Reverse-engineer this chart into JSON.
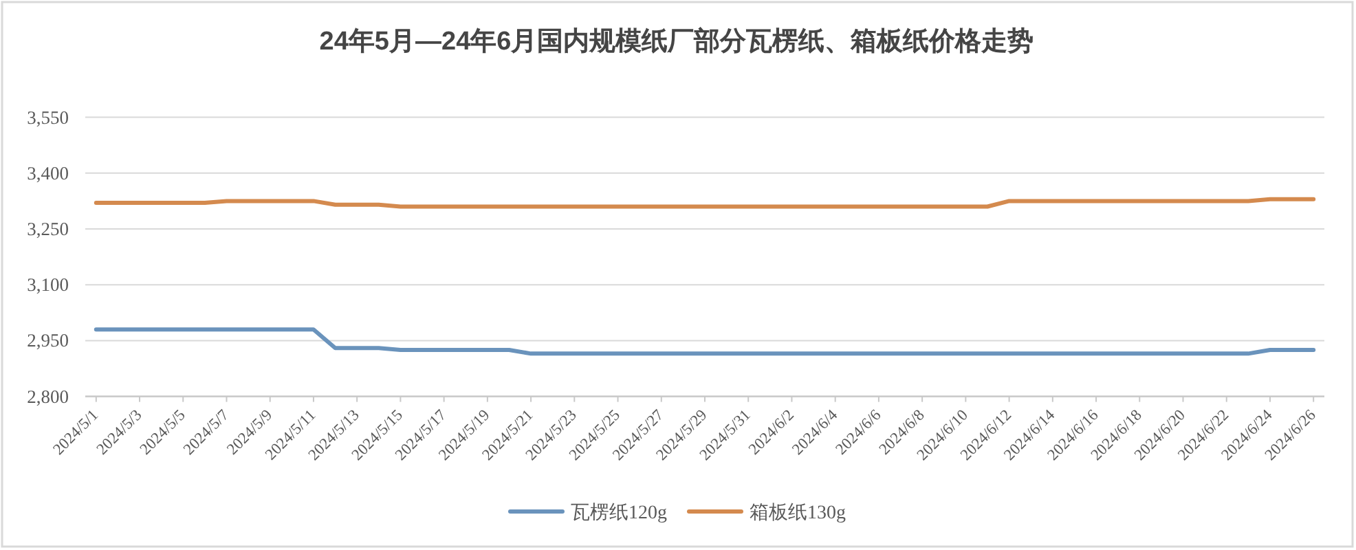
{
  "chart_data": {
    "type": "line",
    "title": "24年5月—24年6月国内规模纸厂部分瓦楞纸、箱板纸价格走势",
    "x": [
      "2024-05-01",
      "2024-05-02",
      "2024-05-03",
      "2024-05-04",
      "2024-05-05",
      "2024-05-06",
      "2024-05-07",
      "2024-05-08",
      "2024-05-09",
      "2024-05-10",
      "2024-05-11",
      "2024-05-12",
      "2024-05-13",
      "2024-05-14",
      "2024-05-15",
      "2024-05-16",
      "2024-05-17",
      "2024-05-18",
      "2024-05-19",
      "2024-05-20",
      "2024-05-21",
      "2024-05-22",
      "2024-05-23",
      "2024-05-24",
      "2024-05-25",
      "2024-05-26",
      "2024-05-27",
      "2024-05-28",
      "2024-05-29",
      "2024-05-30",
      "2024-05-31",
      "2024-06-01",
      "2024-06-02",
      "2024-06-03",
      "2024-06-04",
      "2024-06-05",
      "2024-06-06",
      "2024-06-07",
      "2024-06-08",
      "2024-06-09",
      "2024-06-10",
      "2024-06-11",
      "2024-06-12",
      "2024-06-13",
      "2024-06-14",
      "2024-06-15",
      "2024-06-16",
      "2024-06-17",
      "2024-06-18",
      "2024-06-19",
      "2024-06-20",
      "2024-06-21",
      "2024-06-22",
      "2024-06-23",
      "2024-06-24",
      "2024-06-25",
      "2024-06-26"
    ],
    "series": [
      {
        "name": "瓦楞纸120g",
        "color": "#6a93bc",
        "values": [
          2980,
          2980,
          2980,
          2980,
          2980,
          2980,
          2980,
          2980,
          2980,
          2980,
          2980,
          2930,
          2930,
          2930,
          2925,
          2925,
          2925,
          2925,
          2925,
          2925,
          2915,
          2915,
          2915,
          2915,
          2915,
          2915,
          2915,
          2915,
          2915,
          2915,
          2915,
          2915,
          2915,
          2915,
          2915,
          2915,
          2915,
          2915,
          2915,
          2915,
          2915,
          2915,
          2915,
          2915,
          2915,
          2915,
          2915,
          2915,
          2915,
          2915,
          2915,
          2915,
          2915,
          2915,
          2925,
          2925,
          2925
        ]
      },
      {
        "name": "箱板纸130g",
        "color": "#d48a4e",
        "values": [
          3320,
          3320,
          3320,
          3320,
          3320,
          3320,
          3325,
          3325,
          3325,
          3325,
          3325,
          3315,
          3315,
          3315,
          3310,
          3310,
          3310,
          3310,
          3310,
          3310,
          3310,
          3310,
          3310,
          3310,
          3310,
          3310,
          3310,
          3310,
          3310,
          3310,
          3310,
          3310,
          3310,
          3310,
          3310,
          3310,
          3310,
          3310,
          3310,
          3310,
          3310,
          3310,
          3325,
          3325,
          3325,
          3325,
          3325,
          3325,
          3325,
          3325,
          3325,
          3325,
          3325,
          3325,
          3330,
          3330,
          3330
        ]
      }
    ],
    "xlim": [
      "2024-04-30T12:00",
      "2024-06-26T12:00"
    ],
    "xticks": [
      {
        "value": "2024-05-01",
        "label": "2024/5/1"
      },
      {
        "value": "2024-05-03",
        "label": "2024/5/3"
      },
      {
        "value": "2024-05-05",
        "label": "2024/5/5"
      },
      {
        "value": "2024-05-07",
        "label": "2024/5/7"
      },
      {
        "value": "2024-05-09",
        "label": "2024/5/9"
      },
      {
        "value": "2024-05-11",
        "label": "2024/5/11"
      },
      {
        "value": "2024-05-13",
        "label": "2024/5/13"
      },
      {
        "value": "2024-05-15",
        "label": "2024/5/15"
      },
      {
        "value": "2024-05-17",
        "label": "2024/5/17"
      },
      {
        "value": "2024-05-19",
        "label": "2024/5/19"
      },
      {
        "value": "2024-05-21",
        "label": "2024/5/21"
      },
      {
        "value": "2024-05-23",
        "label": "2024/5/23"
      },
      {
        "value": "2024-05-25",
        "label": "2024/5/25"
      },
      {
        "value": "2024-05-27",
        "label": "2024/5/27"
      },
      {
        "value": "2024-05-29",
        "label": "2024/5/29"
      },
      {
        "value": "2024-05-31",
        "label": "2024/5/31"
      },
      {
        "value": "2024-06-02",
        "label": "2024/6/2"
      },
      {
        "value": "2024-06-04",
        "label": "2024/6/4"
      },
      {
        "value": "2024-06-06",
        "label": "2024/6/6"
      },
      {
        "value": "2024-06-08",
        "label": "2024/6/8"
      },
      {
        "value": "2024-06-10",
        "label": "2024/6/10"
      },
      {
        "value": "2024-06-12",
        "label": "2024/6/12"
      },
      {
        "value": "2024-06-14",
        "label": "2024/6/14"
      },
      {
        "value": "2024-06-16",
        "label": "2024/6/16"
      },
      {
        "value": "2024-06-18",
        "label": "2024/6/18"
      },
      {
        "value": "2024-06-20",
        "label": "2024/6/20"
      },
      {
        "value": "2024-06-22",
        "label": "2024/6/22"
      },
      {
        "value": "2024-06-24",
        "label": "2024/6/24"
      },
      {
        "value": "2024-06-26",
        "label": "2024/6/26"
      }
    ],
    "ylim": [
      2800,
      3550
    ],
    "yticks": [
      {
        "value": 2800,
        "label": "2,800"
      },
      {
        "value": 2950,
        "label": "2,950"
      },
      {
        "value": 3100,
        "label": "3,100"
      },
      {
        "value": 3250,
        "label": "3,250"
      },
      {
        "value": 3400,
        "label": "3,400"
      },
      {
        "value": 3550,
        "label": "3,550"
      }
    ],
    "grid": "y",
    "legend": "bottom",
    "line_style": "solid"
  }
}
